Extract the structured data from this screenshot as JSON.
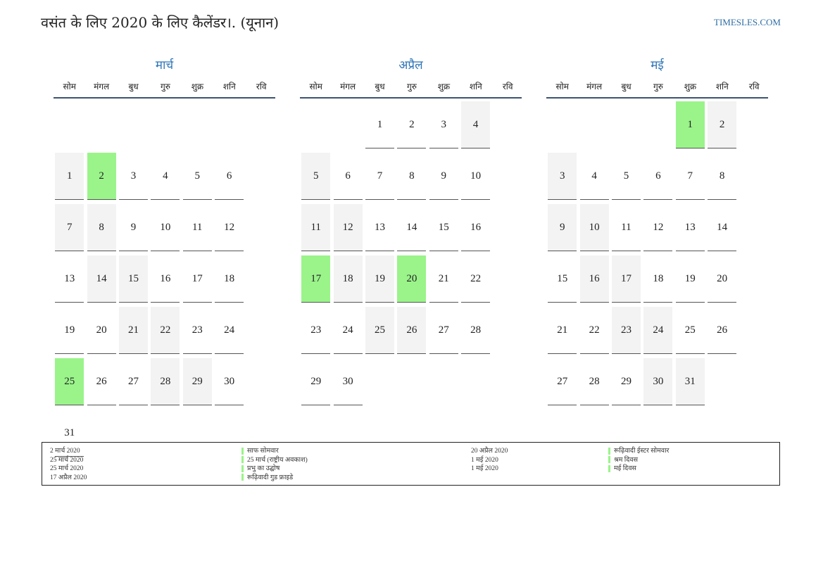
{
  "header": {
    "title": "वसंत के लिए 2020 के लिए कैलेंडर।. (यूनान)",
    "site": "TIMESLES.COM"
  },
  "weekdays": [
    "सोम",
    "मंगल",
    "बुध",
    "गुरु",
    "शुक्र",
    "शनि",
    "रवि"
  ],
  "colors": {
    "accent": "#2e75b6",
    "holiday": "#9af48a",
    "weekend": "#f3f3f3",
    "rule": "#3b5372"
  },
  "months": [
    {
      "name": "मार्च",
      "offset": 6,
      "days": 31,
      "holidays": [
        2,
        25
      ]
    },
    {
      "name": "अप्रैल",
      "offset": 2,
      "days": 30,
      "holidays": [
        17,
        20
      ]
    },
    {
      "name": "मई",
      "offset": 4,
      "days": 31,
      "holidays": [
        1
      ]
    }
  ],
  "legend": {
    "col1_dates": [
      "2 मार्च 2020",
      "25 मार्च 2020",
      "25 मार्च 2020",
      "17 अप्रैल 2020"
    ],
    "col1_names": [
      "साफ सोमवार",
      "25 मार्च (राष्ट्रीय अवकाश)",
      "प्रभु का उद्घोष",
      "रूढ़िवादी गुड फ्राइडे"
    ],
    "col2_dates": [
      "20 अप्रैल 2020",
      "1 मई 2020",
      "1 मई 2020"
    ],
    "col2_names": [
      "रूढ़िवादी ईस्टर सोमवार",
      "श्रम दिवस",
      "मई दिवस"
    ]
  }
}
